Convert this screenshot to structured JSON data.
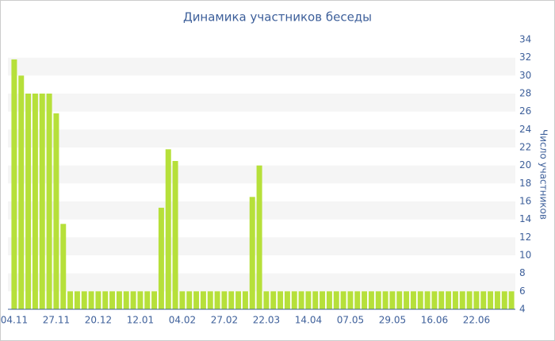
{
  "chart_data": {
    "type": "bar",
    "title": "Динамика участников беседы",
    "y_label": "Число участников",
    "categories": [
      "04.11",
      null,
      null,
      null,
      null,
      null,
      "27.11",
      null,
      null,
      null,
      null,
      null,
      "20.12",
      null,
      null,
      null,
      null,
      null,
      "12.01",
      null,
      null,
      null,
      null,
      null,
      "04.02",
      null,
      null,
      null,
      null,
      null,
      "27.02",
      null,
      null,
      null,
      null,
      null,
      "22.03",
      null,
      null,
      null,
      null,
      null,
      "14.04",
      null,
      null,
      null,
      null,
      null,
      "07.05",
      null,
      null,
      null,
      null,
      null,
      "29.05",
      null,
      null,
      null,
      null,
      null,
      "16.06",
      null,
      null,
      null,
      null,
      null,
      "22.06",
      null,
      null,
      null,
      null,
      null
    ],
    "values": [
      31.8,
      30,
      28,
      28,
      28,
      28,
      25.8,
      13.5,
      6,
      6,
      6,
      6,
      6,
      6,
      6,
      6,
      6,
      6,
      6,
      6,
      6,
      15.3,
      21.8,
      20.5,
      6,
      6,
      6,
      6,
      6,
      6,
      6,
      6,
      6,
      6,
      16.5,
      20,
      6,
      6,
      6,
      6,
      6,
      6,
      6,
      6,
      6,
      6,
      6,
      6,
      6,
      6,
      6,
      6,
      6,
      6,
      6,
      6,
      6,
      6,
      6,
      6,
      6,
      6,
      6,
      6,
      6,
      6,
      6,
      6,
      6,
      6,
      6,
      6
    ],
    "color": "#b6e03a",
    "ylim": [
      4,
      34
    ],
    "yticks": [
      4,
      6,
      8,
      10,
      12,
      14,
      16,
      18,
      20,
      22,
      24,
      26,
      28,
      30,
      32,
      34
    ],
    "grid": true,
    "y_axis_side": "right"
  }
}
